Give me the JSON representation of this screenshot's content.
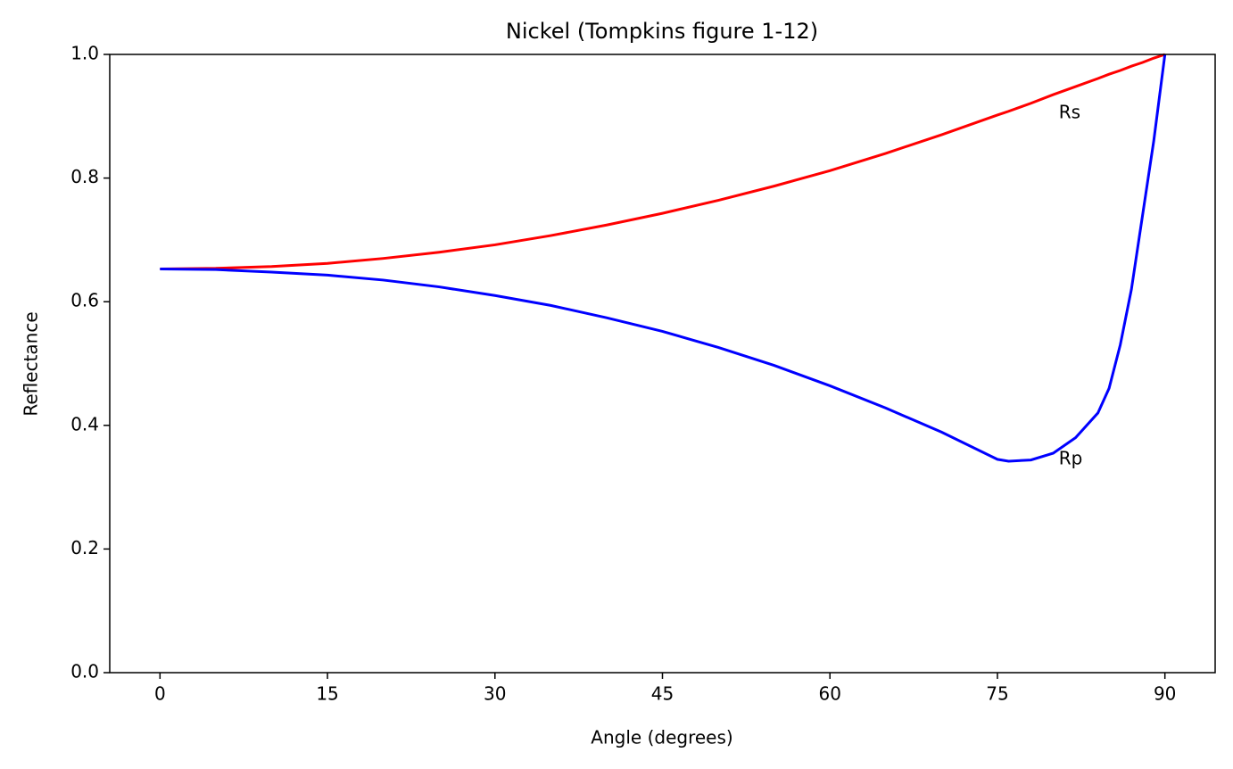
{
  "chart_data": {
    "type": "line",
    "title": "Nickel (Tompkins figure 1-12)",
    "x_label": "Angle (degrees)",
    "y_label": "Reflectance",
    "x": [
      0,
      5,
      10,
      15,
      20,
      25,
      30,
      35,
      40,
      45,
      50,
      55,
      60,
      65,
      70,
      75,
      76,
      78,
      80,
      82,
      84,
      85,
      86,
      87,
      88,
      89,
      90
    ],
    "series": [
      {
        "name": "Rs",
        "color": "#ff0000",
        "values": [
          0.653,
          0.654,
          0.657,
          0.662,
          0.67,
          0.68,
          0.692,
          0.707,
          0.724,
          0.743,
          0.764,
          0.787,
          0.812,
          0.84,
          0.87,
          0.902,
          0.908,
          0.921,
          0.935,
          0.948,
          0.961,
          0.968,
          0.974,
          0.981,
          0.987,
          0.994,
          1.0
        ]
      },
      {
        "name": "Rp",
        "color": "#0000ff",
        "values": [
          0.653,
          0.652,
          0.648,
          0.643,
          0.635,
          0.624,
          0.61,
          0.594,
          0.574,
          0.552,
          0.526,
          0.497,
          0.464,
          0.428,
          0.389,
          0.345,
          0.342,
          0.344,
          0.355,
          0.38,
          0.42,
          0.46,
          0.53,
          0.62,
          0.74,
          0.86,
          1.0
        ]
      }
    ],
    "annotations": [
      {
        "text": "Rs",
        "x": 80.5,
        "y": 0.905,
        "color": "#ff0000"
      },
      {
        "text": "Rp",
        "x": 80.5,
        "y": 0.345,
        "color": "#0000ff"
      }
    ],
    "xlim": [
      -4.5,
      94.5
    ],
    "ylim": [
      0,
      1
    ],
    "xticks": [
      0,
      15,
      30,
      45,
      60,
      75,
      90
    ],
    "yticks": [
      {
        "value": 0,
        "label": "0.0"
      },
      0.2,
      0.4,
      0.6,
      0.8,
      {
        "value": 1,
        "label": "1.0"
      }
    ],
    "grid": false
  }
}
